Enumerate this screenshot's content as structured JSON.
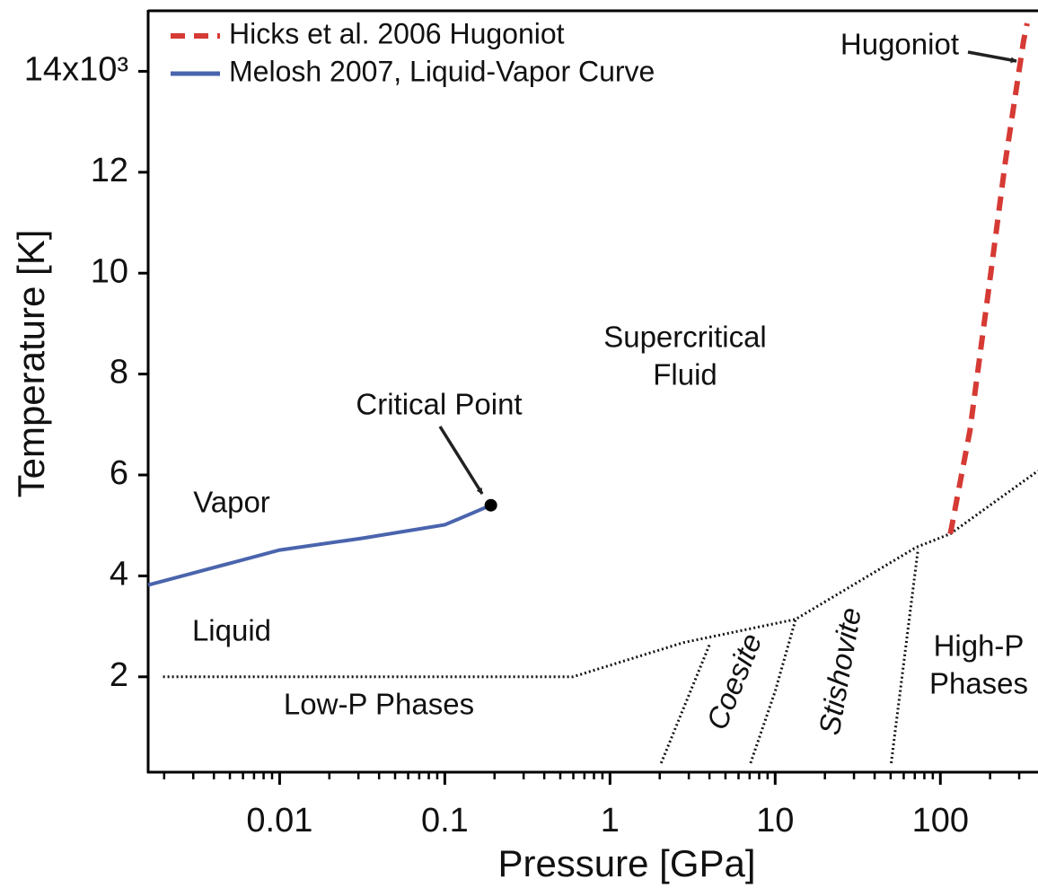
{
  "chart_data": {
    "type": "line",
    "x_label": "Pressure [GPa]",
    "y_label": "Temperature [K]",
    "xscale": "log",
    "xlim": [
      0.0016,
      390
    ],
    "ylim": [
      110,
      15200
    ],
    "xticks": [
      0.01,
      0.1,
      1,
      10,
      100
    ],
    "xminorticks": [
      0.002,
      0.003,
      0.004,
      0.005,
      0.006,
      0.007,
      0.008,
      0.009,
      0.02,
      0.03,
      0.04,
      0.05,
      0.06,
      0.07,
      0.08,
      0.09,
      0.2,
      0.3,
      0.4,
      0.5,
      0.6,
      0.7,
      0.8,
      0.9,
      2,
      3,
      4,
      5,
      6,
      7,
      8,
      9,
      20,
      30,
      40,
      50,
      60,
      70,
      80,
      90,
      200,
      300
    ],
    "yticks": [
      {
        "value": 2000,
        "label": "2"
      },
      {
        "value": 4000,
        "label": "4"
      },
      {
        "value": 6000,
        "label": "6"
      },
      {
        "value": 8000,
        "label": "8"
      },
      {
        "value": 10000,
        "label": "10"
      },
      {
        "value": 12000,
        "label": "12"
      },
      {
        "value": 14000,
        "label": "14x10³"
      }
    ],
    "series": [
      {
        "name": "Hicks et al. 2006 Hugoniot",
        "color": "#d63a34",
        "dashed": true,
        "x": [
          115,
          151,
          194,
          248,
          319,
          335
        ],
        "values": [
          4834,
          6880,
          9560,
          12230,
          14600,
          14950
        ]
      },
      {
        "name": "Melosh 2007, Liquid-Vapor Curve",
        "color": "#4a64ad",
        "dashed": false,
        "x": [
          0.0016,
          0.01,
          0.0316,
          0.1,
          0.19
        ],
        "values": [
          3818,
          4513,
          4745,
          5012,
          5400
        ]
      }
    ],
    "boundaries": [
      {
        "x": [
          0.00197,
          0.596,
          2.78,
          13.3,
          71.4,
          115,
          390
        ],
        "values": [
          2000,
          2000,
          2677,
          3141,
          4567,
          4834,
          6082
        ]
      },
      {
        "x": [
          2.04,
          4.05
        ],
        "values": [
          289,
          2677
        ]
      },
      {
        "x": [
          7.1,
          10,
          13.3
        ],
        "values": [
          289,
          1715,
          3141
        ]
      },
      {
        "x": [
          50.4,
          73.3
        ],
        "values": [
          289,
          4531
        ]
      }
    ],
    "critical_point": {
      "label": "Critical Point",
      "x": 0.19,
      "y": 5400
    },
    "annotations": [
      "Hugoniot"
    ],
    "regions": [
      {
        "lines": [
          "Vapor"
        ]
      },
      {
        "lines": [
          "Liquid"
        ]
      },
      {
        "lines": [
          "Low-P Phases"
        ]
      },
      {
        "lines": [
          "Supercritical",
          "Fluid"
        ]
      },
      {
        "lines": [
          "Coesite"
        ]
      },
      {
        "lines": [
          "Stishovite"
        ]
      },
      {
        "lines": [
          "High-P",
          "Phases"
        ]
      }
    ]
  }
}
